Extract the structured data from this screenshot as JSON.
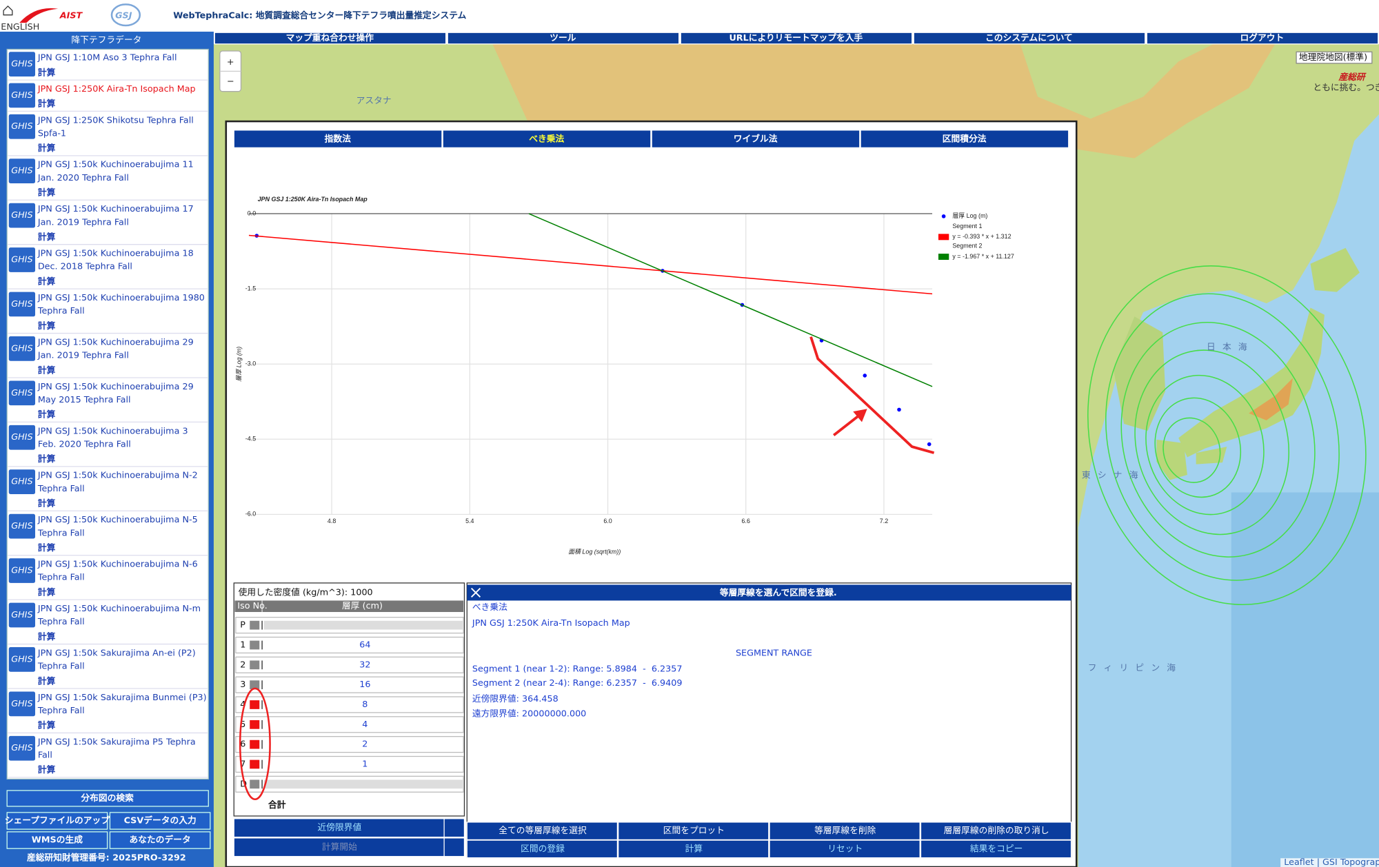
{
  "header": {
    "language": "ENGLISH",
    "logo_text": "AIST",
    "logo_mark": "GSJ",
    "title": "WebTephraCalc: 地質調査総合センター降下テフラ噴出量推定システム"
  },
  "menu": [
    "マップ重ね合わせ操作",
    "ツール",
    "URLによりリモートマップを入手",
    "このシステムについて",
    "ログアウト"
  ],
  "sidebar": {
    "title": "降下テフラデータ",
    "selected_item": 1,
    "items": [
      {
        "badge": "GHIS",
        "lines": [
          "JPN GSJ 1:10M Aso 3 Tephra Fall"
        ],
        "action": "計算"
      },
      {
        "badge": "GHIS",
        "lines": [
          "JPN GSJ 1:250K Aira-Tn Isopach Map"
        ],
        "action": "計算"
      },
      {
        "badge": "GHIS",
        "lines": [
          "JPN GSJ 1:250K Shikotsu Tephra Fall",
          "Spfa-1"
        ],
        "action": "計算"
      },
      {
        "badge": "GHIS",
        "lines": [
          "JPN GSJ 1:50k Kuchinoerabujima 11",
          "Jan. 2020 Tephra Fall"
        ],
        "action": "計算"
      },
      {
        "badge": "GHIS",
        "lines": [
          "JPN GSJ 1:50k Kuchinoerabujima 17",
          "Jan. 2019 Tephra Fall"
        ],
        "action": "計算"
      },
      {
        "badge": "GHIS",
        "lines": [
          "JPN GSJ 1:50k Kuchinoerabujima 18",
          "Dec. 2018 Tephra Fall"
        ],
        "action": "計算"
      },
      {
        "badge": "GHIS",
        "lines": [
          "JPN GSJ 1:50k Kuchinoerabujima 1980",
          "Tephra Fall"
        ],
        "action": "計算"
      },
      {
        "badge": "GHIS",
        "lines": [
          "JPN GSJ 1:50k Kuchinoerabujima 29",
          "Jan. 2019 Tephra Fall"
        ],
        "action": "計算"
      },
      {
        "badge": "GHIS",
        "lines": [
          "JPN GSJ 1:50k Kuchinoerabujima 29",
          "May 2015 Tephra Fall"
        ],
        "action": "計算"
      },
      {
        "badge": "GHIS",
        "lines": [
          "JPN GSJ 1:50k Kuchinoerabujima 3",
          "Feb. 2020 Tephra Fall"
        ],
        "action": "計算"
      },
      {
        "badge": "GHIS",
        "lines": [
          "JPN GSJ 1:50k Kuchinoerabujima N-2",
          "Tephra Fall"
        ],
        "action": "計算"
      },
      {
        "badge": "GHIS",
        "lines": [
          "JPN GSJ 1:50k Kuchinoerabujima N-5",
          "Tephra Fall"
        ],
        "action": "計算"
      },
      {
        "badge": "GHIS",
        "lines": [
          "JPN GSJ 1:50k Kuchinoerabujima N-6",
          "Tephra Fall"
        ],
        "action": "計算"
      },
      {
        "badge": "GHIS",
        "lines": [
          "JPN GSJ 1:50k Kuchinoerabujima N-m",
          "Tephra Fall"
        ],
        "action": "計算"
      },
      {
        "badge": "GHIS",
        "lines": [
          "JPN GSJ 1:50k Sakurajima An-ei (P2)",
          "Tephra Fall"
        ],
        "action": "計算"
      },
      {
        "badge": "GHIS",
        "lines": [
          "JPN GSJ 1:50k Sakurajima Bunmei (P3)",
          "Tephra Fall"
        ],
        "action": "計算"
      },
      {
        "badge": "GHIS",
        "lines": [
          "JPN GSJ 1:50k Sakurajima P5 Tephra",
          "Fall"
        ],
        "action": "計算"
      }
    ],
    "search_button": "分布図の検索",
    "buttons": [
      "シェープファイルのアップ",
      "CSVデータの入力",
      "WMSの生成",
      "あなたのデータ"
    ],
    "footer": "産総研知財管理番号: 2025PRO-3292"
  },
  "map": {
    "zoom_in": "+",
    "zoom_out": "−",
    "layer_select": "地理院地図(標準)",
    "brand": "産総研",
    "brand_tagline": "ともに挑む。つぎを創る。",
    "attribution": "Leaflet | GSI Topographic Map",
    "labels": [
      "アスタナ",
      "日本海",
      "東シナ海",
      "フィリピン海"
    ]
  },
  "dialog": {
    "tabs": [
      "指数法",
      "べき乗法",
      "ワイブル法",
      "区間積分法"
    ],
    "active_tab": 1
  },
  "chart_data": {
    "type": "scatter",
    "title": "JPN GSJ 1:250K Aira-Tn Isopach Map",
    "x_label": "面積 Log (sqrt(km))",
    "y_label": "層厚 Log (m)",
    "xlim": [
      4.44,
      7.41
    ],
    "ylim": [
      -6,
      0
    ],
    "xticks": [
      4.8,
      5.4,
      {
        "value": 6,
        "label": "6.0"
      },
      6.6,
      7.2
    ],
    "yticks": [
      {
        "value": 0,
        "label": "0.0"
      },
      -1.5,
      {
        "value": -3,
        "label": "-3.0"
      },
      -4.5,
      {
        "value": -6,
        "label": "-6.0"
      }
    ],
    "grid": true,
    "legend": "top-right",
    "series": [
      {
        "name": "層厚 Log (m)",
        "type": "scatter",
        "color": "#0000ff",
        "x": [
          4.474,
          6.238,
          6.584,
          6.929,
          7.117,
          7.266,
          7.397
        ],
        "values": [
          -0.44,
          -1.14,
          -1.82,
          -2.53,
          -3.23,
          -3.91,
          -4.6
        ]
      },
      {
        "name": "Segment 1",
        "label": "y = -0.393 * x + 1.312",
        "type": "line",
        "color": "#ff0000",
        "x": [
          4.44,
          7.41
        ],
        "values": [
          -0.433,
          -1.6
        ]
      },
      {
        "name": "Segment 2",
        "label": "y = -1.967 * x + 11.127",
        "type": "line",
        "color": "#008000",
        "x": [
          5.657,
          7.41
        ],
        "values": [
          0,
          -3.448
        ]
      }
    ]
  },
  "iso_table": {
    "density_label": "使用した密度値 (kg/m^3): 1000",
    "columns": [
      "Iso No.",
      "層厚 (cm)"
    ],
    "rows": [
      {
        "no": "P",
        "thickness": null,
        "selected": false
      },
      {
        "no": "1",
        "thickness": 64,
        "selected": false
      },
      {
        "no": "2",
        "thickness": 32,
        "selected": false
      },
      {
        "no": "3",
        "thickness": 16,
        "selected": false
      },
      {
        "no": "4",
        "thickness": 8,
        "selected": true
      },
      {
        "no": "5",
        "thickness": 4,
        "selected": true
      },
      {
        "no": "6",
        "thickness": 2,
        "selected": true
      },
      {
        "no": "7",
        "thickness": 1,
        "selected": true
      },
      {
        "no": "D",
        "thickness": null,
        "selected": false
      }
    ],
    "total": "合計",
    "buttons": [
      "近傍限界値",
      "計算開始"
    ]
  },
  "result_panel": {
    "title": "等層厚線を選んで区間を登録.",
    "method": "べき乗法",
    "map_name": "JPN GSJ 1:250K Aira-Tn Isopach Map",
    "heading": "SEGMENT RANGE",
    "details": [
      "Segment 1 (near 1-2): Range: 5.8984  -  6.2357",
      "Segment 2 (near 2-4): Range: 6.2357  -  6.9409",
      "近傍限界値: 364.458",
      "遠方限界値: 20000000.000"
    ],
    "buttons": [
      [
        "全ての等層厚線を選択",
        "区間をプロット",
        "等層厚線を削除",
        "層層厚線の削除の取り消し"
      ],
      [
        "区間の登録",
        "計算",
        "リセット",
        "結果をコピー"
      ]
    ]
  }
}
